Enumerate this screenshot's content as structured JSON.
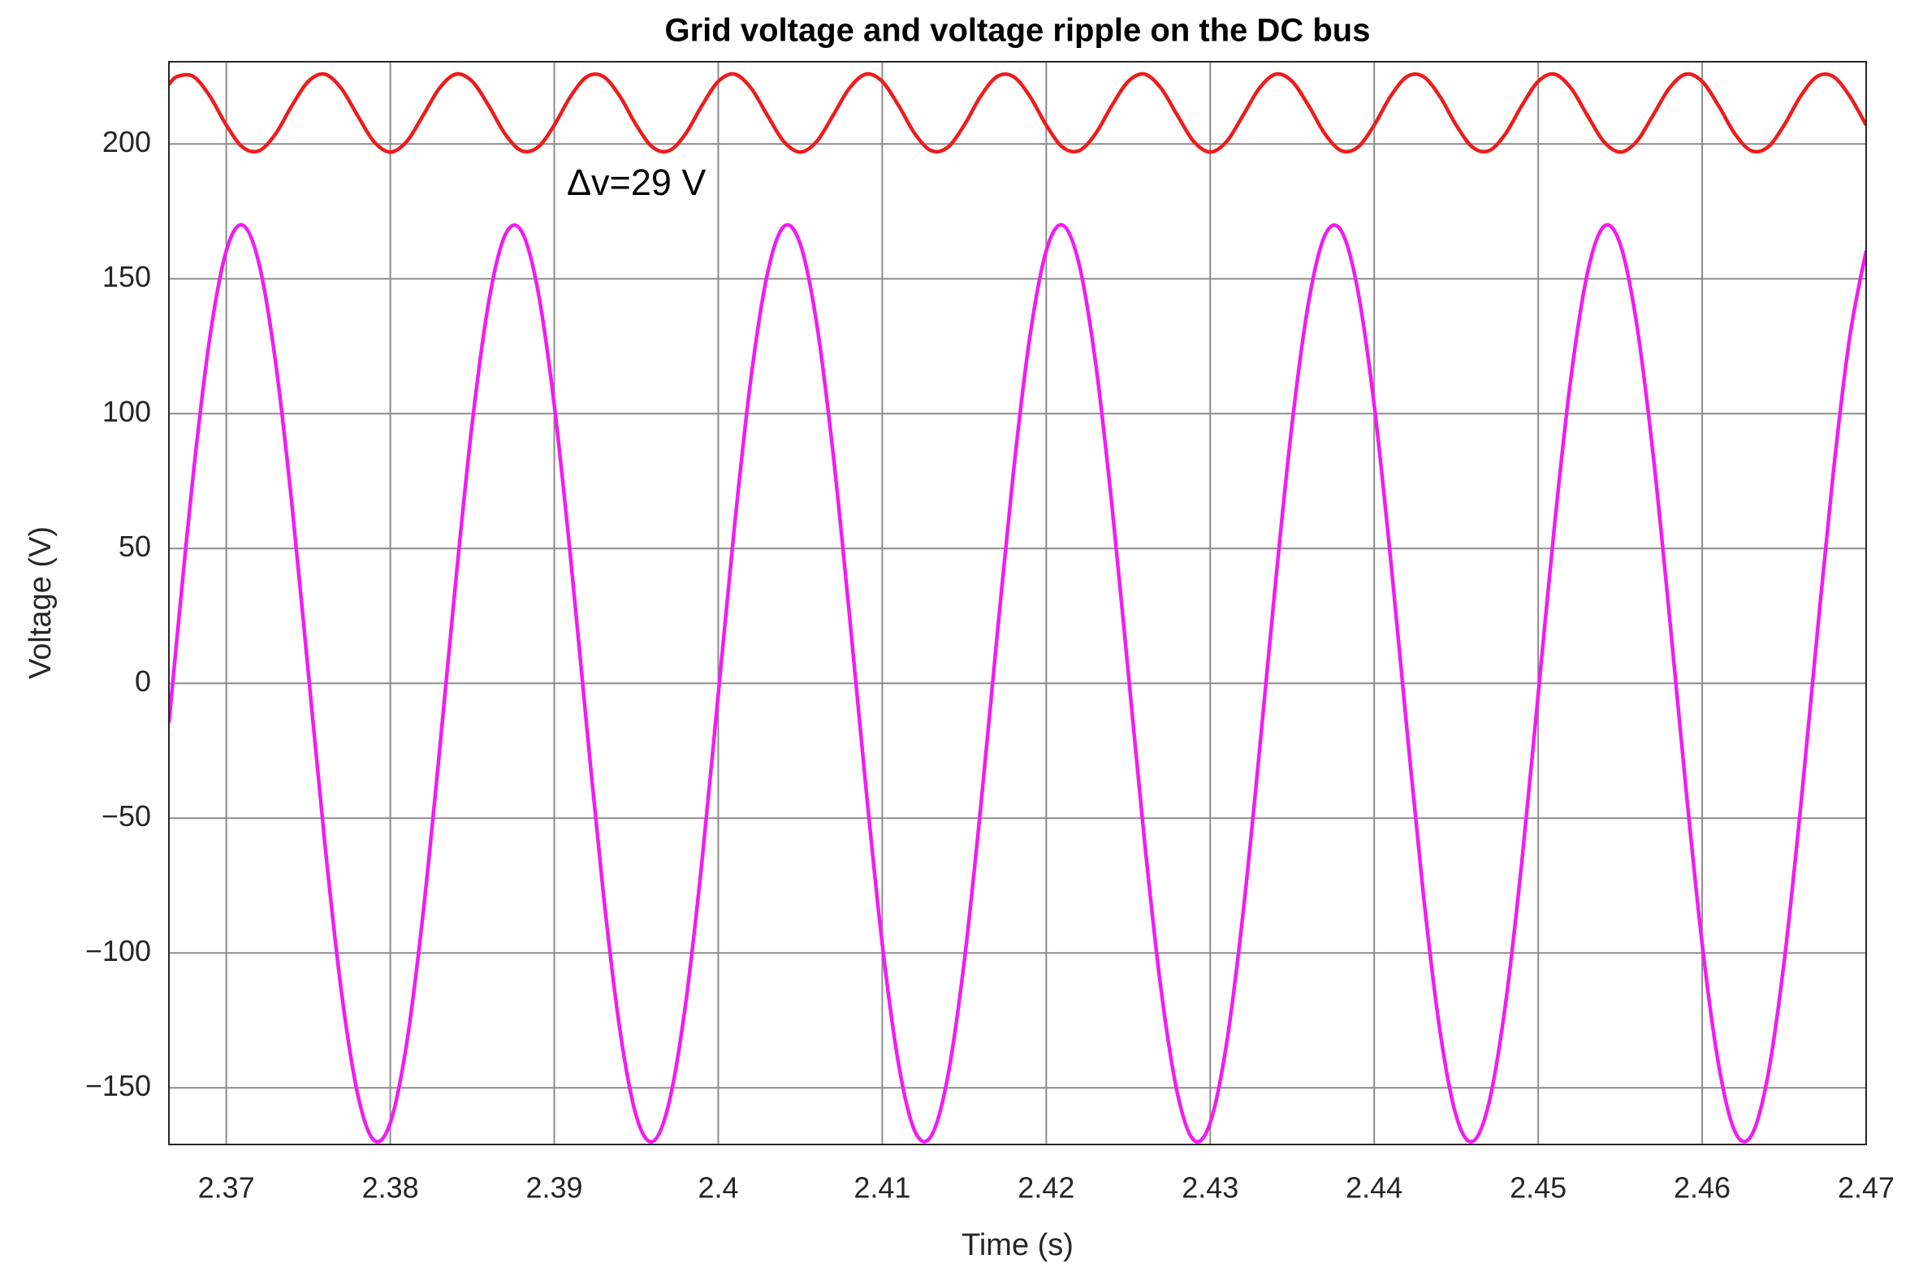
{
  "chart_data": {
    "type": "line",
    "title": "Grid voltage and voltage ripple on the DC bus",
    "x_label": "Time (s)",
    "y_label": "Voltage (V)",
    "annotation": "Δv=29 V",
    "grid": true,
    "xlim": [
      2.3665,
      2.47
    ],
    "ylim": [
      -171,
      230.5
    ],
    "xticks": [
      2.37,
      2.38,
      2.39,
      2.4,
      2.41,
      2.42,
      2.43,
      2.44,
      2.45,
      2.46,
      2.47
    ],
    "yticks": [
      {
        "value": -150,
        "label": "−150"
      },
      {
        "value": -100,
        "label": "−100"
      },
      {
        "value": -50,
        "label": "−50"
      },
      0,
      50,
      100,
      150,
      200
    ],
    "x": [
      2.3665,
      2.367,
      2.368,
      2.369,
      2.37,
      2.371,
      2.372,
      2.373,
      2.374,
      2.375,
      2.376,
      2.377,
      2.378,
      2.379,
      2.38,
      2.381,
      2.382,
      2.383,
      2.384,
      2.385,
      2.386,
      2.387,
      2.388,
      2.389,
      2.39,
      2.391,
      2.392,
      2.393,
      2.394,
      2.395,
      2.396,
      2.397,
      2.398,
      2.399,
      2.4,
      2.401,
      2.402,
      2.403,
      2.404,
      2.405,
      2.406,
      2.407,
      2.408,
      2.409,
      2.41,
      2.411,
      2.412,
      2.413,
      2.414,
      2.415,
      2.416,
      2.417,
      2.418,
      2.419,
      2.42,
      2.421,
      2.422,
      2.423,
      2.424,
      2.425,
      2.426,
      2.427,
      2.428,
      2.429,
      2.43,
      2.431,
      2.432,
      2.433,
      2.434,
      2.435,
      2.436,
      2.437,
      2.438,
      2.439,
      2.44,
      2.441,
      2.442,
      2.443,
      2.444,
      2.445,
      2.446,
      2.447,
      2.448,
      2.449,
      2.45,
      2.451,
      2.452,
      2.453,
      2.454,
      2.455,
      2.456,
      2.457,
      2.458,
      2.459,
      2.46,
      2.461,
      2.462,
      2.463,
      2.464,
      2.465,
      2.466,
      2.467,
      2.468,
      2.469,
      2.47
    ],
    "series": [
      {
        "color": "#ee1c1c",
        "values": [
          222.1,
          225.0,
          225.0,
          217.7,
          207.0,
          198.8,
          197.5,
          203.7,
          214.2,
          223.2,
          225.9,
          220.7,
          210.6,
          200.9,
          197.0,
          200.9,
          210.6,
          220.7,
          225.9,
          223.2,
          214.2,
          203.7,
          197.5,
          198.8,
          207.0,
          217.7,
          225.0,
          225.0,
          217.7,
          207.0,
          198.8,
          197.5,
          203.7,
          214.2,
          223.2,
          225.9,
          220.7,
          210.6,
          200.9,
          197.0,
          200.9,
          210.6,
          220.7,
          225.9,
          223.2,
          214.2,
          203.7,
          197.5,
          198.8,
          207.0,
          217.7,
          225.0,
          225.0,
          217.7,
          207.0,
          198.8,
          197.5,
          203.7,
          214.2,
          223.2,
          225.9,
          220.7,
          210.6,
          200.9,
          197.0,
          200.9,
          210.6,
          220.7,
          225.9,
          223.2,
          214.2,
          203.7,
          197.5,
          198.8,
          207.0,
          217.7,
          225.0,
          225.0,
          217.7,
          207.0,
          198.8,
          197.5,
          203.7,
          214.2,
          223.2,
          225.9,
          220.7,
          210.6,
          200.9,
          197.0,
          200.9,
          210.6,
          220.7,
          225.9,
          223.2,
          214.2,
          203.7,
          197.5,
          198.8,
          207.0,
          217.7,
          225.0,
          225.0,
          217.7,
          207.0
        ]
      },
      {
        "color": "#f21cf2",
        "values": [
          -14.7,
          17.3,
          78.3,
          128.4,
          160.4,
          169.9,
          155.5,
          119.3,
          66.4,
          4.1,
          -58.8,
          -113.4,
          -152.0,
          -169.4,
          -162.9,
          -133.5,
          -85.4,
          -25.3,
          38.3,
          96.6,
          141.3,
          166.2,
          167.7,
          145.7,
          103.2,
          46.2,
          -17.3,
          -78.3,
          -128.4,
          -160.4,
          -169.9,
          -155.5,
          -119.3,
          -66.4,
          -4.1,
          58.8,
          113.4,
          152.0,
          169.4,
          162.9,
          133.5,
          85.4,
          25.3,
          -38.3,
          -96.6,
          -141.3,
          -166.2,
          -167.7,
          -145.7,
          -103.2,
          -46.2,
          17.3,
          78.3,
          128.4,
          160.4,
          169.9,
          155.5,
          119.3,
          66.4,
          4.1,
          -58.8,
          -113.4,
          -152.0,
          -169.4,
          -162.9,
          -133.5,
          -85.4,
          -25.3,
          38.3,
          96.6,
          141.3,
          166.2,
          167.7,
          145.7,
          103.2,
          46.2,
          -17.3,
          -78.3,
          -128.4,
          -160.4,
          -169.9,
          -155.5,
          -119.3,
          -66.4,
          -4.1,
          58.8,
          113.4,
          152.0,
          169.4,
          162.9,
          133.5,
          85.4,
          25.3,
          -38.3,
          -96.6,
          -141.3,
          -166.2,
          -167.7,
          -145.7,
          -103.2,
          -46.2,
          17.3,
          78.3,
          128.4,
          160.4
        ]
      }
    ]
  }
}
